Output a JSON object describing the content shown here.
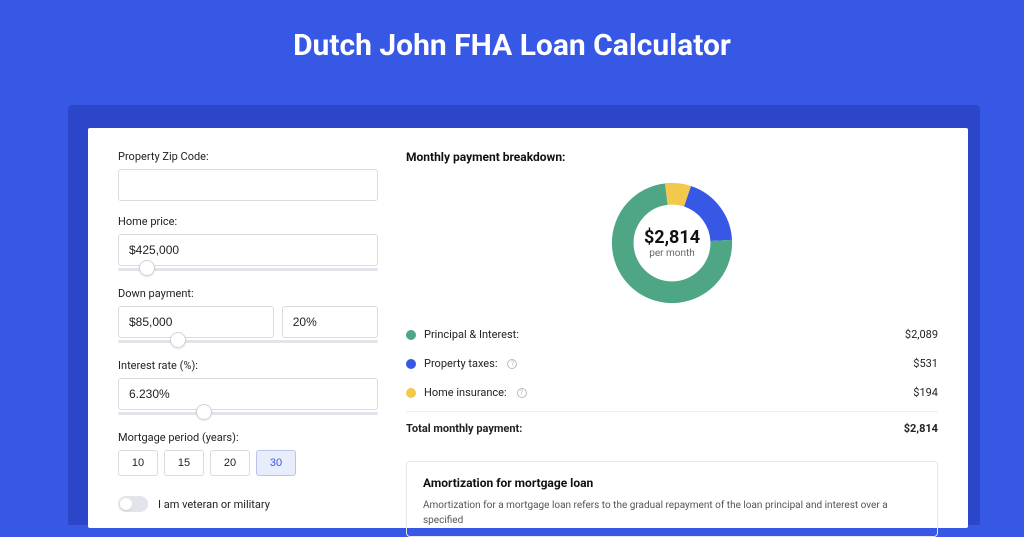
{
  "title": "Dutch John FHA Loan Calculator",
  "colors": {
    "page_bg": "#3758e4",
    "shadow": "#2b46c9",
    "principal": "#4fa685",
    "taxes": "#3758e4",
    "insurance": "#f2c94c"
  },
  "form": {
    "zip": {
      "label": "Property Zip Code:",
      "value": ""
    },
    "home_price": {
      "label": "Home price:",
      "value": "$425,000",
      "slider_pct": 8
    },
    "down_payment": {
      "label": "Down payment:",
      "value": "$85,000",
      "pct_value": "20%",
      "slider_pct": 20
    },
    "interest_rate": {
      "label": "Interest rate (%):",
      "value": "6.230%",
      "slider_pct": 30
    },
    "period": {
      "label": "Mortgage period (years):",
      "options": [
        "10",
        "15",
        "20",
        "30"
      ],
      "selected": "30"
    },
    "veteran": {
      "label": "I am veteran or military",
      "on": false
    }
  },
  "breakdown": {
    "title": "Monthly payment breakdown:",
    "amount": "$2,814",
    "sub": "per month",
    "items": [
      {
        "label": "Principal & Interest:",
        "color": "#4fa685",
        "value": "$2,089",
        "info": false,
        "pct": 74
      },
      {
        "label": "Property taxes:",
        "color": "#3758e4",
        "value": "$531",
        "info": true,
        "pct": 19
      },
      {
        "label": "Home insurance:",
        "color": "#f2c94c",
        "value": "$194",
        "info": true,
        "pct": 7
      }
    ],
    "total_label": "Total monthly payment:",
    "total_value": "$2,814"
  },
  "amortization": {
    "title": "Amortization for mortgage loan",
    "text": "Amortization for a mortgage loan refers to the gradual repayment of the loan principal and interest over a specified"
  }
}
